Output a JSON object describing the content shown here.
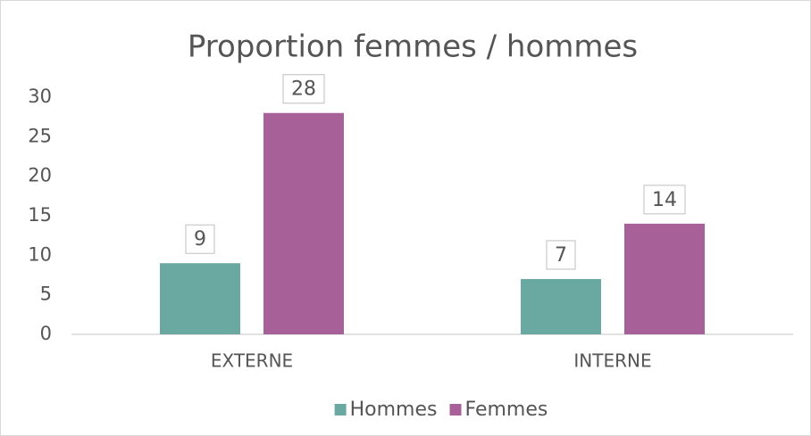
{
  "chart_data": {
    "type": "bar",
    "title": "Proportion femmes / hommes",
    "categories": [
      "EXTERNE",
      "INTERNE"
    ],
    "series": [
      {
        "name": "Hommes",
        "color": "#6aa8a2",
        "values": [
          9,
          7
        ]
      },
      {
        "name": "Femmes",
        "color": "#a86098",
        "values": [
          28,
          14
        ]
      }
    ],
    "ylim": [
      0,
      30
    ],
    "yticks": [
      0,
      5,
      10,
      15,
      20,
      25,
      30
    ],
    "grid": false,
    "legend": "bottom"
  }
}
